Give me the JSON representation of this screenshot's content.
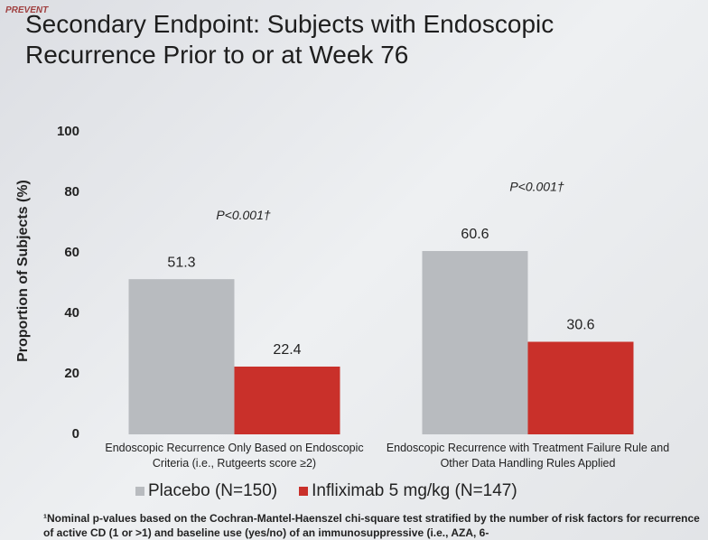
{
  "header": "PREVENT",
  "chart_data": {
    "type": "bar",
    "title": "Secondary Endpoint: Subjects with Endoscopic Recurrence Prior to or at Week 76",
    "y_label": "Proportion of Subjects (%)",
    "categories": [
      "Endoscopic Recurrence Only Based on Endoscopic Criteria (i.e., Rutgeerts score ≥2)",
      "Endoscopic Recurrence with Treatment Failure Rule and Other Data Handling Rules Applied"
    ],
    "annotations": [
      "P<0.001†",
      "P<0.001†"
    ],
    "series": [
      {
        "name": "Placebo (N=150)",
        "color": "#b8bbbf",
        "values": [
          51.3,
          60.6
        ]
      },
      {
        "name": "Infliximab 5 mg/kg (N=147)",
        "color": "#c9302a",
        "values": [
          22.4,
          30.6
        ]
      }
    ],
    "ylim": [
      0,
      100
    ],
    "yticks": [
      0,
      20,
      40,
      60,
      80,
      100
    ],
    "grid": false
  },
  "footnote": "¹Nominal p-values based on the Cochran-Mantel-Haenszel chi-square test stratified by the number of risk factors for recurrence of active CD (1 or >1) and baseline use (yes/no) of an immunosuppressive (i.e., AZA, 6-"
}
